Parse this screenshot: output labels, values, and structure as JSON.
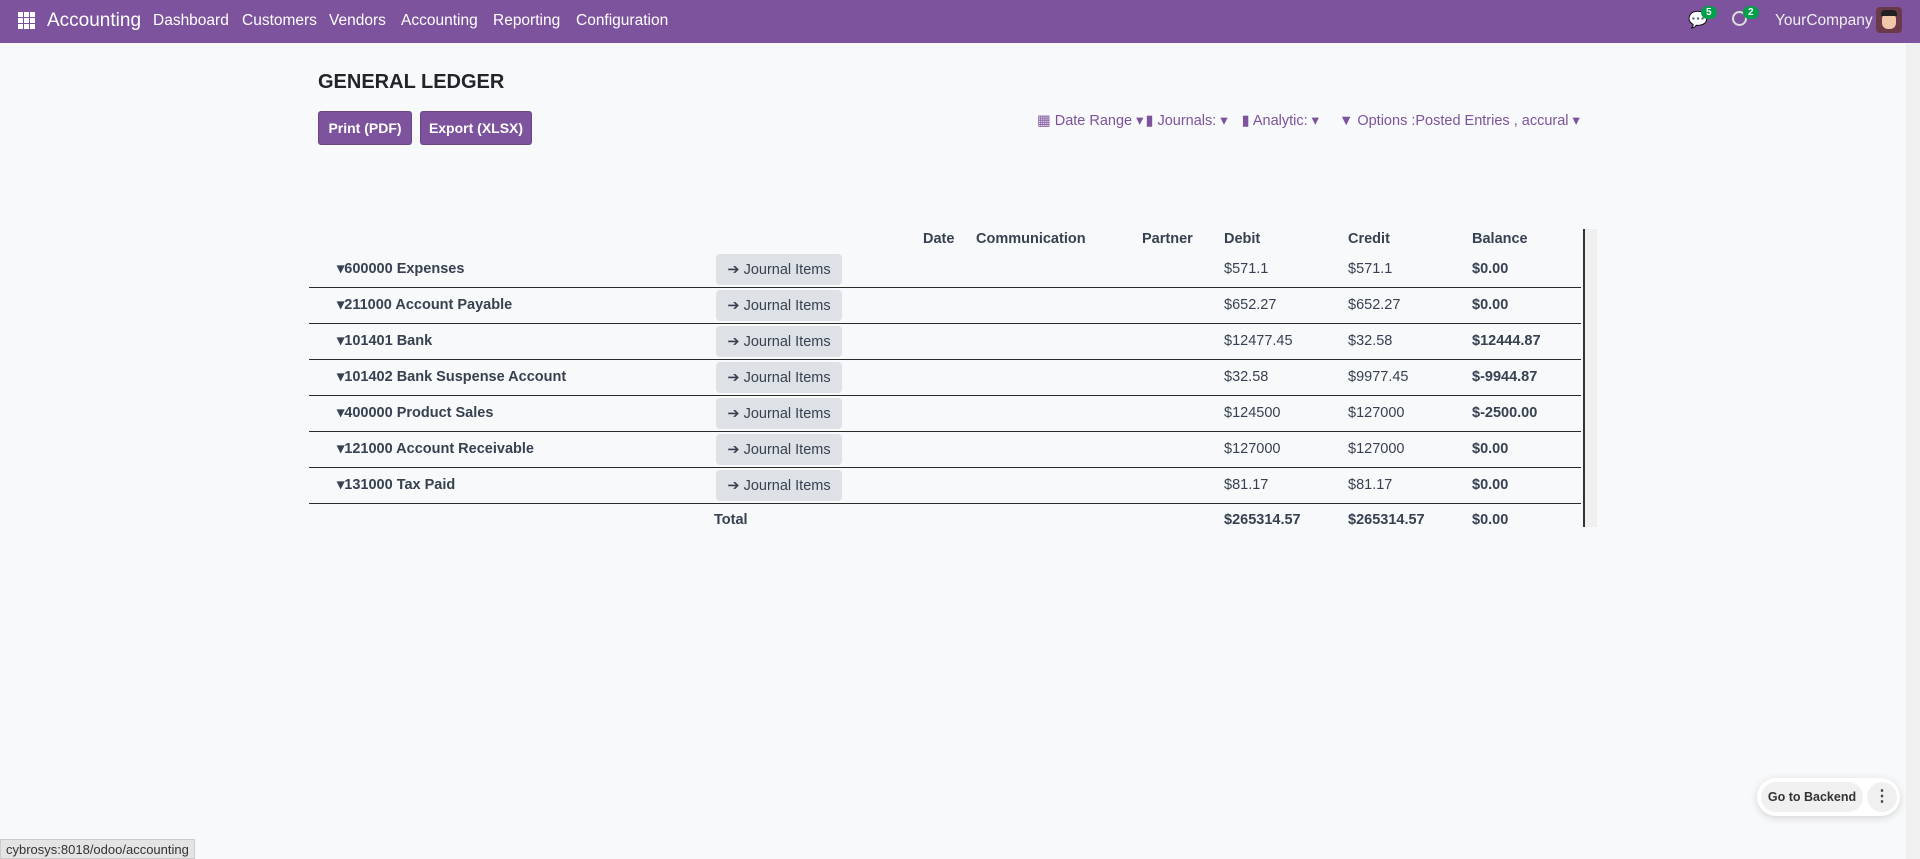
{
  "navbar": {
    "app_name": "Accounting",
    "menu": [
      "Dashboard",
      "Customers",
      "Vendors",
      "Accounting",
      "Reporting",
      "Configuration"
    ],
    "messages_count": "5",
    "activities_count": "2",
    "company": "YourCompany",
    "brand_color": "#7c539c"
  },
  "page": {
    "title": "GENERAL LEDGER",
    "print_label": "Print (PDF)",
    "export_label": "Export (XLSX)"
  },
  "filters": {
    "date_range": "Date Range",
    "journals": "Journals:",
    "analytic": "Analytic:",
    "options": "Options :Posted Entries , accural"
  },
  "table": {
    "headers": {
      "date": "Date",
      "communication": "Communication",
      "partner": "Partner",
      "debit": "Debit",
      "credit": "Credit",
      "balance": "Balance"
    },
    "journal_items_label": "Journal Items",
    "rows": [
      {
        "account": "600000 Expenses",
        "debit": "$571.1",
        "credit": "$571.1",
        "balance": "$0.00"
      },
      {
        "account": "211000 Account Payable",
        "debit": "$652.27",
        "credit": "$652.27",
        "balance": "$0.00"
      },
      {
        "account": "101401 Bank",
        "debit": "$12477.45",
        "credit": "$32.58",
        "balance": "$12444.87"
      },
      {
        "account": "101402 Bank Suspense Account",
        "debit": "$32.58",
        "credit": "$9977.45",
        "balance": "$-9944.87"
      },
      {
        "account": "400000 Product Sales",
        "debit": "$124500",
        "credit": "$127000",
        "balance": "$-2500.00"
      },
      {
        "account": "121000 Account Receivable",
        "debit": "$127000",
        "credit": "$127000",
        "balance": "$0.00"
      },
      {
        "account": "131000 Tax Paid",
        "debit": "$81.17",
        "credit": "$81.17",
        "balance": "$0.00"
      }
    ],
    "total": {
      "label": "Total",
      "debit": "$265314.57",
      "credit": "$265314.57",
      "balance": "$0.00"
    }
  },
  "floating": {
    "go_to_backend": "Go to Backend"
  },
  "status_bar": "cybrosys:8018/odoo/accounting"
}
